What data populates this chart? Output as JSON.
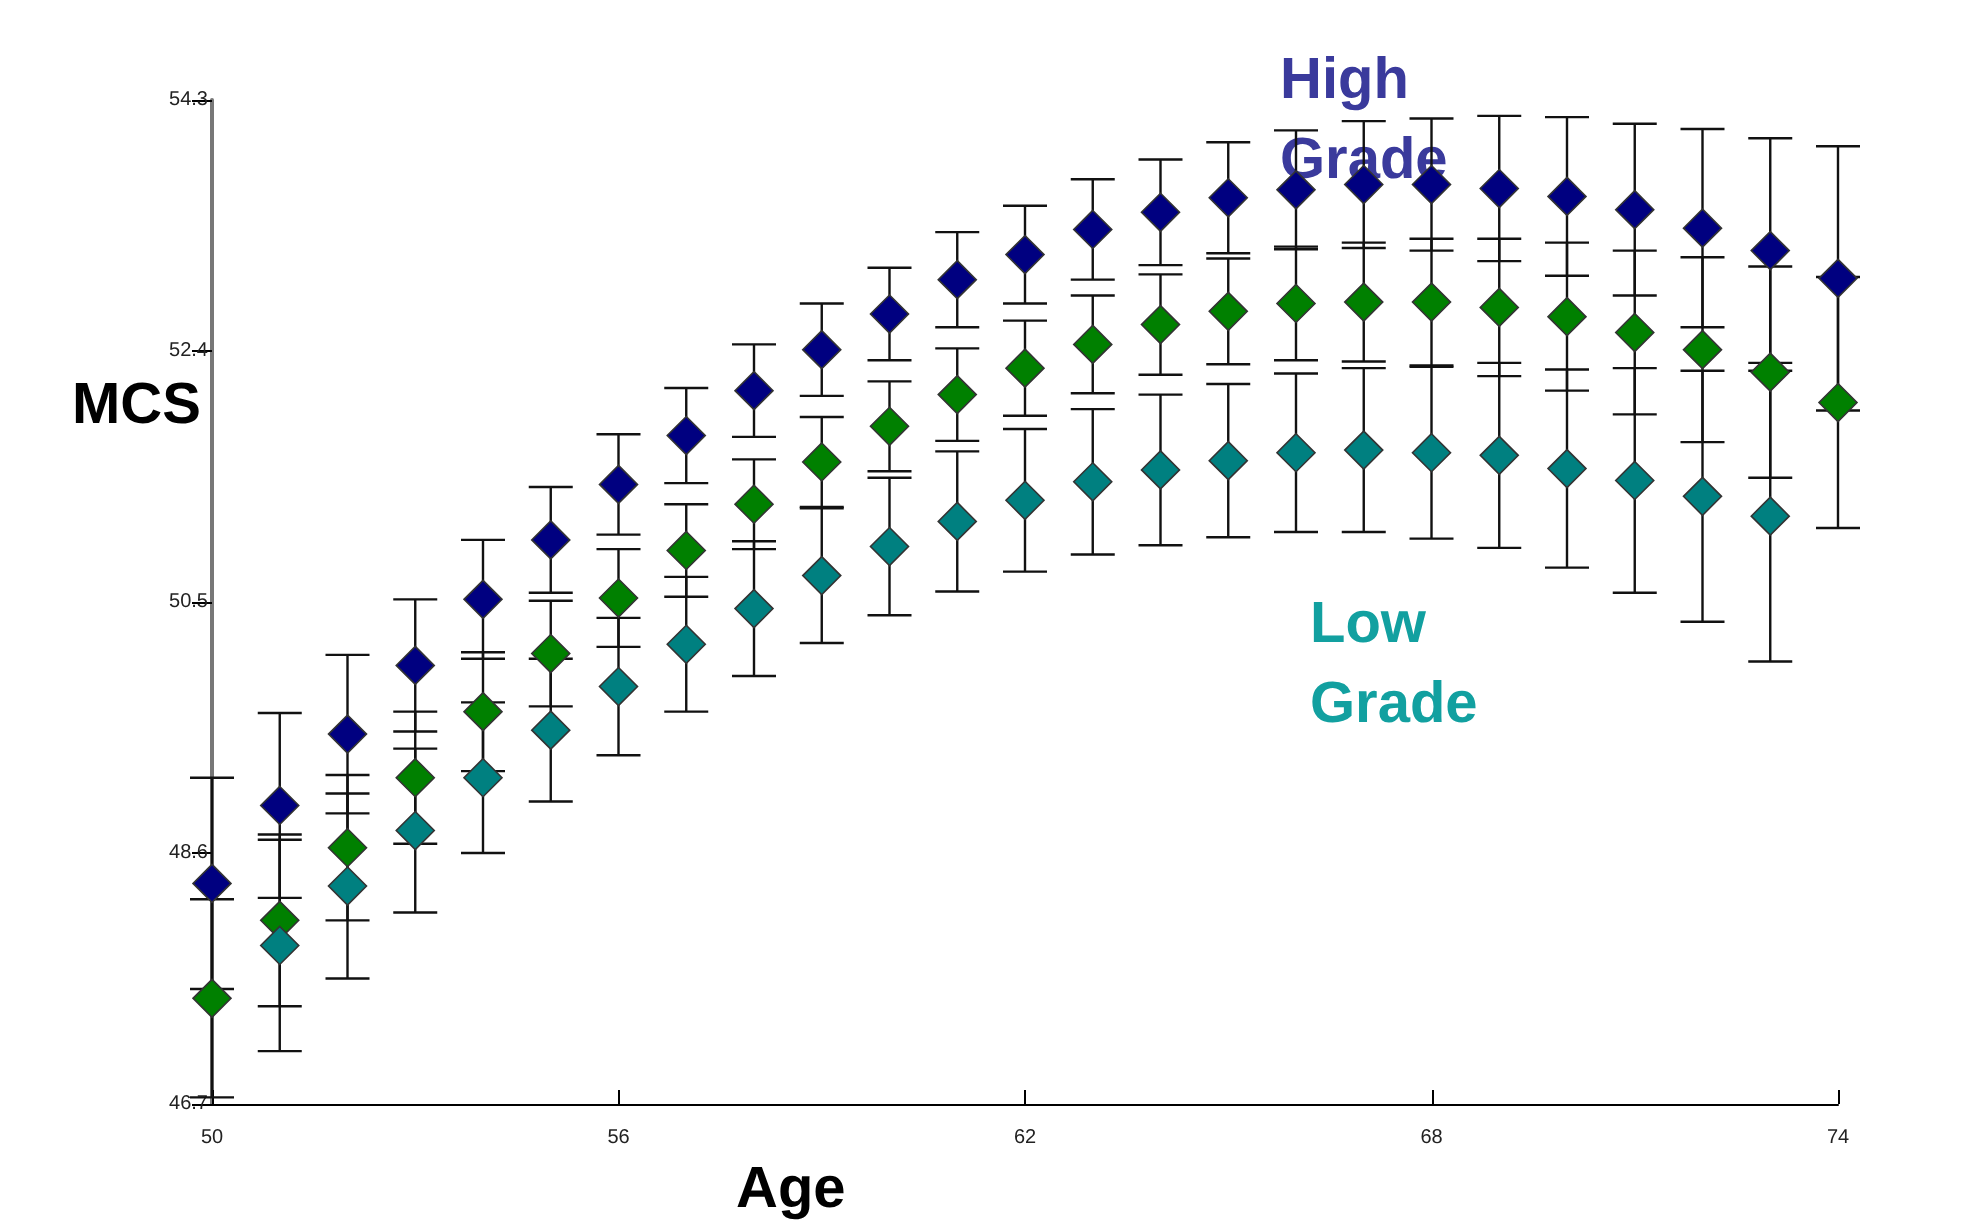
{
  "chart_data": {
    "type": "scatter",
    "xlabel": "Age",
    "ylabel": "MCS",
    "x": [
      50,
      51,
      52,
      53,
      54,
      55,
      56,
      57,
      58,
      59,
      60,
      61,
      62,
      63,
      64,
      65,
      66,
      67,
      68,
      69,
      70,
      71,
      72,
      73,
      74
    ],
    "xlim": [
      50,
      74
    ],
    "xticks": [
      50,
      56,
      62,
      68,
      74
    ],
    "ylim": [
      46.7,
      54.3
    ],
    "yticks": [
      46.7,
      48.6,
      50.5,
      52.4,
      54.3
    ],
    "grid": false,
    "legend": false,
    "marker": "diamond",
    "series": [
      {
        "name": "High Grade",
        "color": "#000080",
        "values": [
          48.37,
          48.96,
          49.5,
          50.02,
          50.52,
          50.97,
          51.39,
          51.76,
          52.1,
          52.41,
          52.68,
          52.94,
          53.13,
          53.32,
          53.45,
          53.56,
          53.62,
          53.66,
          53.66,
          53.63,
          53.57,
          53.47,
          53.33,
          53.16,
          52.95
        ],
        "errors": [
          0.8,
          0.7,
          0.6,
          0.5,
          0.45,
          0.4,
          0.38,
          0.36,
          0.35,
          0.35,
          0.35,
          0.36,
          0.37,
          0.38,
          0.4,
          0.42,
          0.45,
          0.48,
          0.5,
          0.55,
          0.6,
          0.65,
          0.75,
          0.85,
          1.0
        ]
      },
      {
        "color": "#008000",
        "values": [
          47.5,
          48.09,
          48.64,
          49.17,
          49.67,
          50.11,
          50.53,
          50.89,
          51.24,
          51.56,
          51.83,
          52.07,
          52.27,
          52.45,
          52.6,
          52.7,
          52.76,
          52.77,
          52.77,
          52.73,
          52.66,
          52.54,
          52.41,
          52.24,
          52.01
        ],
        "errors": [
          0.75,
          0.65,
          0.55,
          0.5,
          0.45,
          0.4,
          0.37,
          0.35,
          0.34,
          0.34,
          0.34,
          0.35,
          0.36,
          0.37,
          0.38,
          0.4,
          0.43,
          0.45,
          0.48,
          0.52,
          0.56,
          0.62,
          0.7,
          0.8,
          0.95
        ]
      },
      {
        "name": "Low Grade",
        "color": "#008080",
        "values": [
          null,
          47.9,
          48.35,
          48.77,
          49.17,
          49.53,
          49.86,
          50.18,
          50.45,
          50.7,
          50.92,
          51.11,
          51.27,
          51.41,
          51.5,
          51.57,
          51.63,
          51.65,
          51.63,
          51.61,
          51.51,
          51.42,
          51.3,
          51.15,
          null
        ],
        "errors": [
          null,
          0.8,
          0.7,
          0.62,
          0.57,
          0.54,
          0.52,
          0.51,
          0.51,
          0.51,
          0.52,
          0.53,
          0.54,
          0.55,
          0.57,
          0.58,
          0.6,
          0.62,
          0.65,
          0.7,
          0.75,
          0.85,
          0.95,
          1.1,
          null
        ]
      }
    ]
  }
}
